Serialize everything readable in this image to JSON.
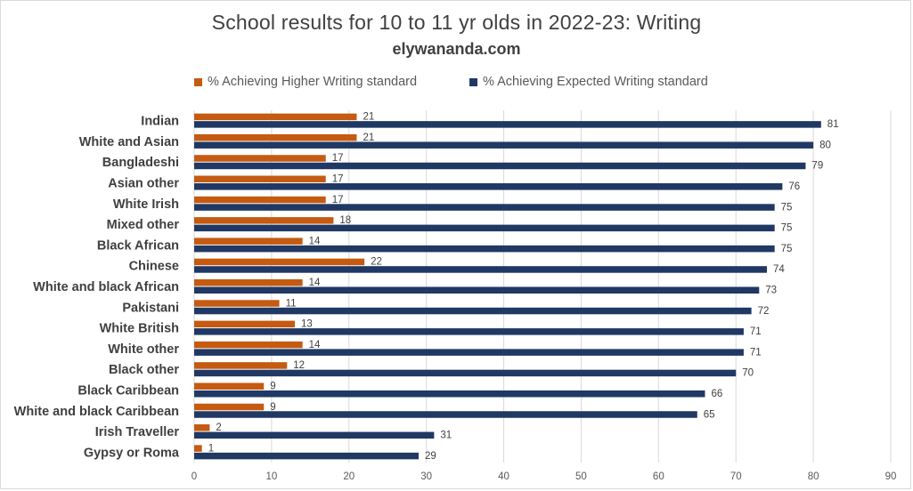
{
  "title": "School results for 10 to 11 yr olds in 2022-23: Writing",
  "subtitle": "elywananda.com",
  "chart_data": {
    "type": "bar",
    "orientation": "horizontal",
    "title": "School results for 10 to 11 yr olds in 2022-23: Writing",
    "subtitle": "elywananda.com",
    "categories": [
      "Indian",
      "White and Asian",
      "Bangladeshi",
      "Asian other",
      "White Irish",
      "Mixed other",
      "Black African",
      "Chinese",
      "White and black African",
      "Pakistani",
      "White British",
      "White other",
      "Black other",
      "Black Caribbean",
      "White and black Caribbean",
      "Irish Traveller",
      "Gypsy or Roma"
    ],
    "series": [
      {
        "name": "% Achieving Higher Writing standard",
        "color": "#c55a11",
        "values": [
          21,
          21,
          17,
          17,
          17,
          18,
          14,
          22,
          14,
          11,
          13,
          14,
          12,
          9,
          9,
          2,
          1
        ]
      },
      {
        "name": "% Achieving Expected Writing standard",
        "color": "#203864",
        "values": [
          81,
          80,
          79,
          76,
          75,
          75,
          75,
          74,
          73,
          72,
          71,
          71,
          70,
          66,
          65,
          31,
          29
        ]
      }
    ],
    "xlim": [
      0,
      90
    ],
    "ticks": [
      0,
      10,
      20,
      30,
      40,
      50,
      60,
      70,
      80,
      90
    ],
    "grid": true,
    "legend_position": "top"
  }
}
